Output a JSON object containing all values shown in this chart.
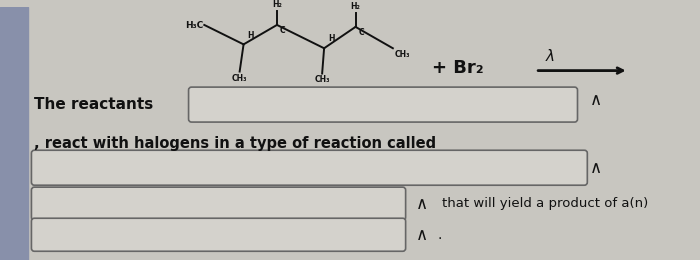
{
  "bg_color": "#c8c6c0",
  "left_strip_color": "#7a7a8a",
  "text_color": "#111111",
  "molecule_color": "#111111",
  "box_bg": "#d4d2cc",
  "box_border": "#666666",
  "line1": "The reactants",
  "line2": ", react with halogens in a type of reaction called",
  "line3": "that will yield a product of a(n)",
  "mol_labels": {
    "H3C": "H₃C",
    "H2_1": "H₂",
    "H2_2": "H₂",
    "CH3_1": "CH₃",
    "CH3_2": "CH₃",
    "CH3_3": "CH₃",
    "H_1": "H",
    "H_2": "H",
    "C_1": "C",
    "C_2": "C"
  },
  "br2": "+ Br₂",
  "lambda": "λ",
  "check_symbol": "∧"
}
